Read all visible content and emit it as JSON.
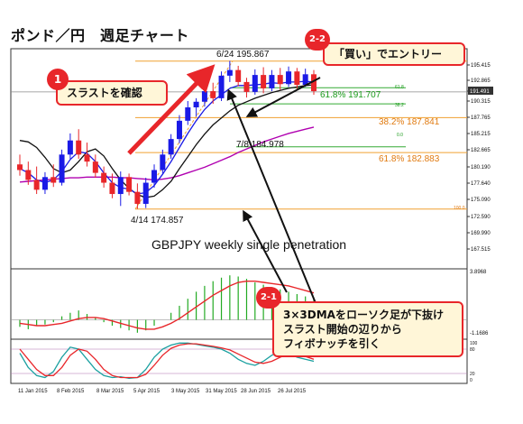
{
  "page": {
    "title": "ポンド／円　週足チャート"
  },
  "callouts": {
    "c1": {
      "badge": "1",
      "text": "スラストを確認"
    },
    "c22": {
      "badge": "2-2",
      "text": "「買い」でエントリー"
    },
    "c21": {
      "badge": "2-1",
      "lines": [
        "3×3DMAをローソク足が下抜け",
        "スラスト開始の辺りから",
        "フィボナッチを引く"
      ]
    }
  },
  "chart_data": {
    "type": "candlestick",
    "symbol_text": "GBPJPY   weekly   single penetration",
    "colors": {
      "up": "#1a1ae6",
      "down": "#e8262a",
      "ma_fast": "#1a1ae6",
      "ma_slow": "#111111",
      "ma_long": "#b000b0",
      "fib": "#f0a030",
      "arrow_red": "#e8262a",
      "arrow_black": "#111111"
    },
    "y_ticks": [
      "195.415",
      "192.865",
      "191.491",
      "190.315",
      "187.765",
      "185.215",
      "182.665",
      "180.190",
      "177.640",
      "175.090",
      "172.590",
      "169.990",
      "167.515"
    ],
    "current_price": "191.491",
    "x_ticks": [
      "11 Jan 2015",
      "8 Feb 2015",
      "8 Mar 2015",
      "5 Apr 2015",
      "3 May 2015",
      "31 May 2015",
      "28 Jun 2015",
      "26 Jul 2015"
    ],
    "annotations": {
      "high": "6/24  195.867",
      "low": "4/14   174.857",
      "swing_low": "7/8  184.978",
      "fib_618_a": "61.8%  191.707",
      "fib_382": "38.2%  187.841",
      "fib_618_b": "61.8%  182.883",
      "small_618": "61.8",
      "small_382": "38.2",
      "small_0": "0.0",
      "small_1000": "100.0"
    },
    "candles": [
      {
        "o": 181.2,
        "h": 182.6,
        "l": 179.6,
        "c": 180.4
      },
      {
        "o": 180.4,
        "h": 181.6,
        "l": 178.3,
        "c": 179.0
      },
      {
        "o": 179.0,
        "h": 180.9,
        "l": 177.0,
        "c": 177.6
      },
      {
        "o": 177.6,
        "h": 180.1,
        "l": 177.0,
        "c": 179.4
      },
      {
        "o": 179.4,
        "h": 181.2,
        "l": 178.0,
        "c": 178.6
      },
      {
        "o": 178.6,
        "h": 183.3,
        "l": 178.2,
        "c": 182.6
      },
      {
        "o": 182.6,
        "h": 185.6,
        "l": 182.0,
        "c": 184.6
      },
      {
        "o": 184.6,
        "h": 186.2,
        "l": 182.0,
        "c": 182.6
      },
      {
        "o": 182.6,
        "h": 184.3,
        "l": 180.9,
        "c": 181.6
      },
      {
        "o": 181.6,
        "h": 182.6,
        "l": 179.3,
        "c": 180.0
      },
      {
        "o": 180.0,
        "h": 180.9,
        "l": 177.9,
        "c": 178.6
      },
      {
        "o": 178.6,
        "h": 179.9,
        "l": 176.4,
        "c": 177.0
      },
      {
        "o": 177.0,
        "h": 180.2,
        "l": 175.3,
        "c": 179.4
      },
      {
        "o": 179.4,
        "h": 179.9,
        "l": 176.8,
        "c": 177.3
      },
      {
        "o": 177.3,
        "h": 178.5,
        "l": 174.9,
        "c": 175.6
      },
      {
        "o": 175.6,
        "h": 179.3,
        "l": 175.0,
        "c": 178.6
      },
      {
        "o": 178.6,
        "h": 181.2,
        "l": 177.9,
        "c": 180.4
      },
      {
        "o": 180.4,
        "h": 183.3,
        "l": 179.9,
        "c": 182.6
      },
      {
        "o": 182.6,
        "h": 185.5,
        "l": 182.0,
        "c": 184.8
      },
      {
        "o": 184.8,
        "h": 188.2,
        "l": 184.2,
        "c": 187.4
      },
      {
        "o": 187.4,
        "h": 190.2,
        "l": 186.8,
        "c": 189.3
      },
      {
        "o": 189.3,
        "h": 190.6,
        "l": 188.0,
        "c": 190.1
      },
      {
        "o": 190.1,
        "h": 192.4,
        "l": 189.4,
        "c": 191.6
      },
      {
        "o": 191.6,
        "h": 192.8,
        "l": 189.8,
        "c": 190.6
      },
      {
        "o": 190.6,
        "h": 194.4,
        "l": 190.2,
        "c": 193.8
      },
      {
        "o": 193.8,
        "h": 195.9,
        "l": 192.9,
        "c": 194.6
      },
      {
        "o": 194.6,
        "h": 195.2,
        "l": 192.3,
        "c": 192.9
      },
      {
        "o": 192.9,
        "h": 193.5,
        "l": 190.7,
        "c": 191.5
      },
      {
        "o": 191.5,
        "h": 194.7,
        "l": 191.1,
        "c": 193.9
      },
      {
        "o": 193.9,
        "h": 195.0,
        "l": 191.3,
        "c": 192.0
      },
      {
        "o": 192.0,
        "h": 194.6,
        "l": 191.6,
        "c": 193.9
      },
      {
        "o": 193.9,
        "h": 194.9,
        "l": 191.8,
        "c": 192.6
      },
      {
        "o": 192.6,
        "h": 195.1,
        "l": 192.2,
        "c": 194.4
      },
      {
        "o": 194.4,
        "h": 194.9,
        "l": 191.9,
        "c": 192.5
      },
      {
        "o": 192.5,
        "h": 194.8,
        "l": 192.2,
        "c": 194.0
      },
      {
        "o": 194.0,
        "h": 194.6,
        "l": 191.1,
        "c": 191.6
      }
    ],
    "ma_fast": [
      180.6,
      180.0,
      179.0,
      178.6,
      179.0,
      180.2,
      181.9,
      183.0,
      182.8,
      181.6,
      180.0,
      178.6,
      177.9,
      177.7,
      177.0,
      177.2,
      178.2,
      179.8,
      181.6,
      183.6,
      185.6,
      187.4,
      189.0,
      190.2,
      191.1,
      192.0,
      192.4,
      192.4,
      192.5,
      192.6,
      192.8,
      192.7,
      192.9,
      192.9,
      193.0,
      192.9
    ],
    "ma_slow": [
      184.6,
      184.4,
      183.6,
      182.2,
      180.6,
      180.0,
      180.4,
      181.6,
      183.0,
      183.4,
      182.4,
      180.6,
      179.0,
      177.8,
      176.9,
      176.5,
      176.7,
      177.6,
      178.8,
      180.6,
      182.3,
      184.0,
      185.5,
      186.8,
      187.8,
      188.8,
      189.6,
      190.1,
      190.6,
      191.0,
      191.4,
      191.7,
      192.0,
      192.2,
      192.4,
      192.5
    ],
    "ma_long": [
      178.7,
      178.8,
      178.9,
      179.0,
      179.1,
      179.2,
      179.3,
      179.3,
      179.4,
      179.4,
      179.4,
      179.4,
      179.3,
      179.3,
      179.2,
      179.1,
      179.0,
      179.1,
      179.3,
      179.6,
      180.0,
      180.4,
      180.8,
      181.3,
      181.8,
      182.3,
      182.9,
      183.4,
      183.9,
      184.4,
      184.8,
      185.2,
      185.6,
      185.9,
      186.2,
      186.5
    ],
    "macd": {
      "max_label": "3.8968",
      "min_label": "-1.1686",
      "hist": [
        -0.6,
        -0.8,
        -0.5,
        -0.4,
        -0.2,
        0.3,
        0.6,
        0.8,
        0.5,
        0.2,
        -0.2,
        -0.5,
        -0.7,
        -0.9,
        -1.1,
        -0.9,
        -0.5,
        0.0,
        0.6,
        1.2,
        1.8,
        2.4,
        2.9,
        3.3,
        3.6,
        3.8,
        3.7,
        3.5,
        3.2,
        3.0,
        2.8,
        2.6,
        2.4,
        2.2,
        2.0,
        1.8
      ],
      "signal": [
        -0.3,
        -0.4,
        -0.5,
        -0.5,
        -0.4,
        -0.3,
        -0.1,
        0.1,
        0.2,
        0.2,
        0.1,
        -0.1,
        -0.3,
        -0.5,
        -0.7,
        -0.8,
        -0.8,
        -0.6,
        -0.3,
        0.1,
        0.6,
        1.1,
        1.6,
        2.1,
        2.5,
        2.9,
        3.2,
        3.3,
        3.3,
        3.2,
        3.1,
        3.0,
        2.9,
        2.7,
        2.5,
        2.3
      ]
    },
    "stoch": {
      "levels": [
        "100",
        "80",
        "20",
        "0"
      ],
      "k": [
        70,
        35,
        15,
        10,
        25,
        60,
        85,
        80,
        55,
        30,
        15,
        10,
        12,
        8,
        10,
        30,
        60,
        80,
        90,
        95,
        95,
        92,
        88,
        85,
        80,
        70,
        55,
        45,
        40,
        50,
        65,
        75,
        70,
        60,
        55,
        50
      ],
      "d": [
        80,
        55,
        30,
        15,
        15,
        35,
        65,
        80,
        75,
        55,
        30,
        15,
        10,
        10,
        10,
        18,
        40,
        65,
        82,
        90,
        93,
        93,
        90,
        87,
        83,
        78,
        68,
        58,
        48,
        45,
        50,
        60,
        68,
        68,
        62,
        55
      ]
    }
  }
}
